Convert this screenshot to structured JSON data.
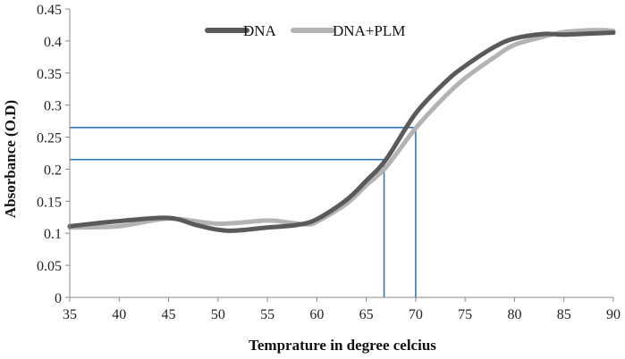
{
  "chart_data": {
    "type": "line",
    "title": "",
    "xlabel": "Temprature in degree celcius",
    "ylabel": "Absorbance (O.D)",
    "xlim": [
      35,
      90
    ],
    "ylim": [
      0,
      0.45
    ],
    "x_ticks": [
      "35",
      "40",
      "45",
      "50",
      "55",
      "60",
      "65",
      "70",
      "75",
      "80",
      "85",
      "90"
    ],
    "y_ticks": [
      "0",
      "0.05",
      "0.1",
      "0.15",
      "0.2",
      "0.25",
      "0.3",
      "0.35",
      "0.4",
      "0.45"
    ],
    "grid": false,
    "legend": "top-center",
    "series": [
      {
        "name": "DNA",
        "color": "#5a5a5a",
        "x": [
          35,
          40,
          45,
          48,
          51,
          55,
          58,
          60,
          63,
          65,
          67,
          70,
          73,
          75,
          78,
          80,
          83,
          85,
          90
        ],
        "y": [
          0.111,
          0.119,
          0.124,
          0.112,
          0.104,
          0.109,
          0.113,
          0.122,
          0.152,
          0.182,
          0.215,
          0.287,
          0.336,
          0.361,
          0.391,
          0.404,
          0.411,
          0.41,
          0.413
        ]
      },
      {
        "name": "DNA+PLM",
        "color": "#b3b3b3",
        "x": [
          35,
          40,
          45,
          50,
          55,
          57,
          59,
          60,
          63,
          65,
          67,
          70,
          73,
          75,
          78,
          80,
          83,
          85,
          88,
          90
        ],
        "y": [
          0.109,
          0.111,
          0.123,
          0.115,
          0.12,
          0.117,
          0.114,
          0.118,
          0.146,
          0.175,
          0.203,
          0.264,
          0.314,
          0.342,
          0.375,
          0.394,
          0.407,
          0.414,
          0.417,
          0.416
        ]
      }
    ],
    "annotations": [
      {
        "type": "guide",
        "color": "#2f78be",
        "x": 66.8,
        "y": 0.215
      },
      {
        "type": "guide",
        "color": "#2f78be",
        "x": 70,
        "y": 0.265
      }
    ]
  }
}
